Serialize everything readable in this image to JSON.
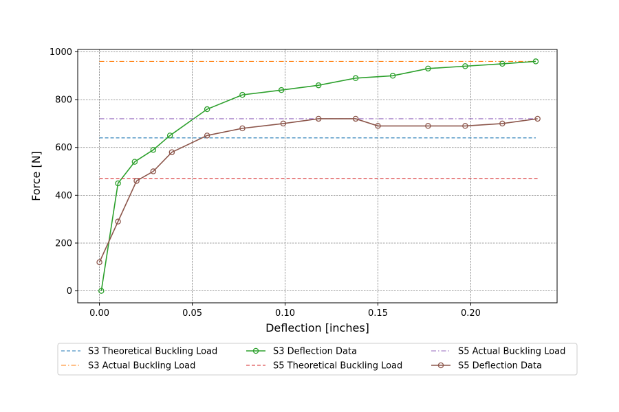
{
  "chart_data": {
    "type": "line",
    "title": "",
    "xlabel": "Deflection [inches]",
    "ylabel": "Force [N]",
    "xlim": [
      -0.0117,
      0.2465
    ],
    "ylim": [
      -50,
      1010
    ],
    "x_ticks": [
      0.0,
      0.05,
      0.1,
      0.15,
      0.2
    ],
    "x_tick_labels": [
      "0.00",
      "0.05",
      "0.10",
      "0.15",
      "0.20"
    ],
    "y_ticks": [
      0,
      200,
      400,
      600,
      800,
      1000
    ],
    "y_tick_labels": [
      "0",
      "200",
      "400",
      "600",
      "800",
      "1000"
    ],
    "grid": true,
    "legend_position": "below",
    "series": [
      {
        "name": "S3 Theoretical Buckling Load",
        "kind": "hline",
        "color": "#1f77b4",
        "dash": "dashed",
        "x": [
          0.0,
          0.235
        ],
        "y": [
          640,
          640
        ]
      },
      {
        "name": "S3 Actual Buckling Load",
        "kind": "hline",
        "color": "#ff7f0e",
        "dash": "dashdot",
        "x": [
          0.0,
          0.235
        ],
        "y": [
          960,
          960
        ]
      },
      {
        "name": "S3 Deflection Data",
        "kind": "data",
        "color": "#2ca02c",
        "dash": "solid",
        "x": [
          0.001,
          0.01,
          0.019,
          0.029,
          0.038,
          0.058,
          0.077,
          0.098,
          0.118,
          0.138,
          0.158,
          0.177,
          0.197,
          0.217,
          0.235
        ],
        "y": [
          0,
          450,
          540,
          590,
          650,
          760,
          820,
          840,
          860,
          890,
          900,
          930,
          940,
          950,
          960
        ]
      },
      {
        "name": "S5 Theoretical Buckling Load",
        "kind": "hline",
        "color": "#d62728",
        "dash": "dashed",
        "x": [
          0.0,
          0.236
        ],
        "y": [
          470,
          470
        ]
      },
      {
        "name": "S5 Actual Buckling Load",
        "kind": "hline",
        "color": "#9467bd",
        "dash": "dashdot",
        "x": [
          0.0,
          0.236
        ],
        "y": [
          720,
          720
        ]
      },
      {
        "name": "S5 Deflection Data",
        "kind": "data",
        "color": "#8c564b",
        "dash": "solid",
        "x": [
          0.0,
          0.01,
          0.02,
          0.029,
          0.039,
          0.058,
          0.077,
          0.099,
          0.118,
          0.138,
          0.15,
          0.177,
          0.197,
          0.217,
          0.236
        ],
        "y": [
          120,
          290,
          460,
          500,
          580,
          650,
          680,
          700,
          720,
          720,
          690,
          690,
          690,
          700,
          720
        ]
      }
    ]
  }
}
